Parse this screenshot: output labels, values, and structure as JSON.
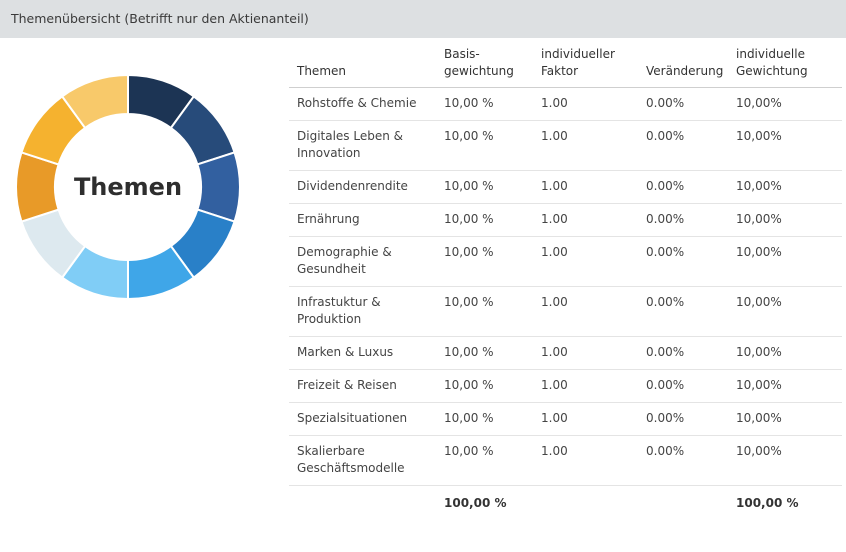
{
  "header": {
    "title": "Themenübersicht (Betrifft nur den Aktienanteil)"
  },
  "donut": {
    "center_label": "Themen",
    "segments": [
      {
        "theme": "Rohstoffe & Chemie",
        "share": 10,
        "color": "#1c3454"
      },
      {
        "theme": "Digitales Leben & Innovation",
        "share": 10,
        "color": "#274b7a"
      },
      {
        "theme": "Dividendenrendite",
        "share": 10,
        "color": "#3260a0"
      },
      {
        "theme": "Ernährung",
        "share": 10,
        "color": "#2980c8"
      },
      {
        "theme": "Demographie & Gesundheit",
        "share": 10,
        "color": "#3fa6e8"
      },
      {
        "theme": "Infrastuktur & Produktion",
        "share": 10,
        "color": "#80cdf6"
      },
      {
        "theme": "Marken & Luxus",
        "share": 10,
        "color": "#dde9ef"
      },
      {
        "theme": "Freizeit & Reisen",
        "share": 10,
        "color": "#e89a28"
      },
      {
        "theme": "Spezialsituationen",
        "share": 10,
        "color": "#f5b22f"
      },
      {
        "theme": "Skalierbare Geschäftsmodelle",
        "share": 10,
        "color": "#f8c96a"
      }
    ]
  },
  "table": {
    "headers": {
      "theme": "Themen",
      "base": "Basis-\ngewichtung",
      "factor": "individueller\nFaktor",
      "change": "Veränderung",
      "weight": "individuelle\nGewichtung"
    },
    "rows": [
      {
        "theme": "Rohstoffe & Chemie",
        "base": "10,00 %",
        "factor": "1.00",
        "change": "0.00%",
        "weight": "10,00%"
      },
      {
        "theme": "Digitales Leben &\nInnovation",
        "base": "10,00 %",
        "factor": "1.00",
        "change": "0.00%",
        "weight": "10,00%"
      },
      {
        "theme": "Dividendenrendite",
        "base": "10,00 %",
        "factor": "1.00",
        "change": "0.00%",
        "weight": "10,00%"
      },
      {
        "theme": "Ernährung",
        "base": "10,00 %",
        "factor": "1.00",
        "change": "0.00%",
        "weight": "10,00%"
      },
      {
        "theme": "Demographie &\nGesundheit",
        "base": "10,00 %",
        "factor": "1.00",
        "change": "0.00%",
        "weight": "10,00%"
      },
      {
        "theme": "Infrastuktur &\nProduktion",
        "base": "10,00 %",
        "factor": "1.00",
        "change": "0.00%",
        "weight": "10,00%"
      },
      {
        "theme": "Marken & Luxus",
        "base": "10,00 %",
        "factor": "1.00",
        "change": "0.00%",
        "weight": "10,00%"
      },
      {
        "theme": "Freizeit & Reisen",
        "base": "10,00 %",
        "factor": "1.00",
        "change": "0.00%",
        "weight": "10,00%"
      },
      {
        "theme": "Spezialsituationen",
        "base": "10,00 %",
        "factor": "1.00",
        "change": "0.00%",
        "weight": "10,00%"
      },
      {
        "theme": "Skalierbare\nGeschäftsmodelle",
        "base": "10,00 %",
        "factor": "1.00",
        "change": "0.00%",
        "weight": "10,00%"
      }
    ],
    "totals": {
      "base": "100,00 %",
      "weight": "100,00 %"
    }
  }
}
